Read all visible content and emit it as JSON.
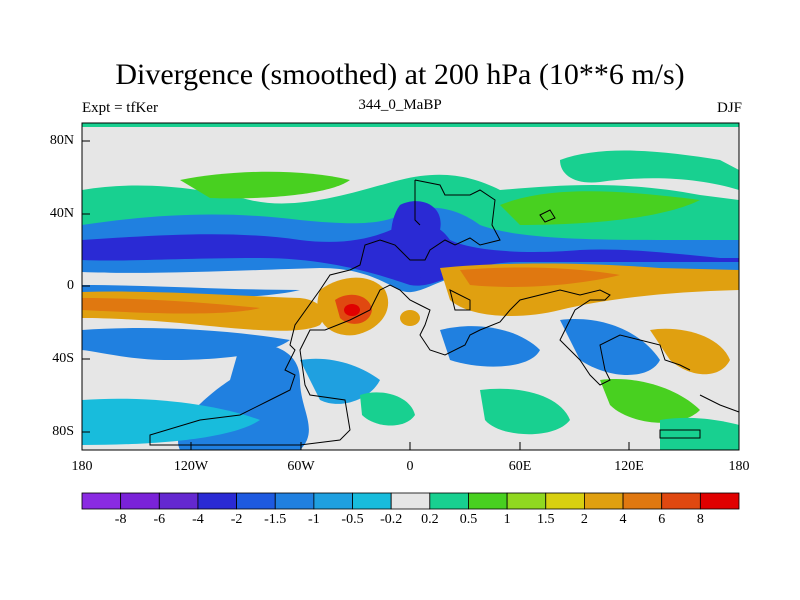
{
  "title": "Divergence (smoothed) at 200 hPa (10**6 m/s)",
  "left_label": "Expt = tfKer",
  "center_label": "344_0_MaBP",
  "right_label": "DJF",
  "map": {
    "lat_labels": [
      "80N",
      "40N",
      "0",
      "40S",
      "80S"
    ],
    "lon_labels": [
      "180",
      "120W",
      "60W",
      "0",
      "60E",
      "120E",
      "180"
    ]
  },
  "colorbar": {
    "colors": [
      "#8a2be2",
      "#7a22d8",
      "#6428d0",
      "#2a2ad4",
      "#1e5ae0",
      "#2080e0",
      "#1fa0e0",
      "#18bcdc",
      "#e6e6e6",
      "#18d090",
      "#48d020",
      "#90d820",
      "#d8d010",
      "#e0a010",
      "#e07810",
      "#e04810",
      "#e00000"
    ],
    "labels": [
      "-8",
      "-6",
      "-4",
      "-2",
      "-1.5",
      "-1",
      "-0.5",
      "-0.2",
      "0.2",
      "0.5",
      "1",
      "1.5",
      "2",
      "4",
      "6",
      "8"
    ]
  }
}
